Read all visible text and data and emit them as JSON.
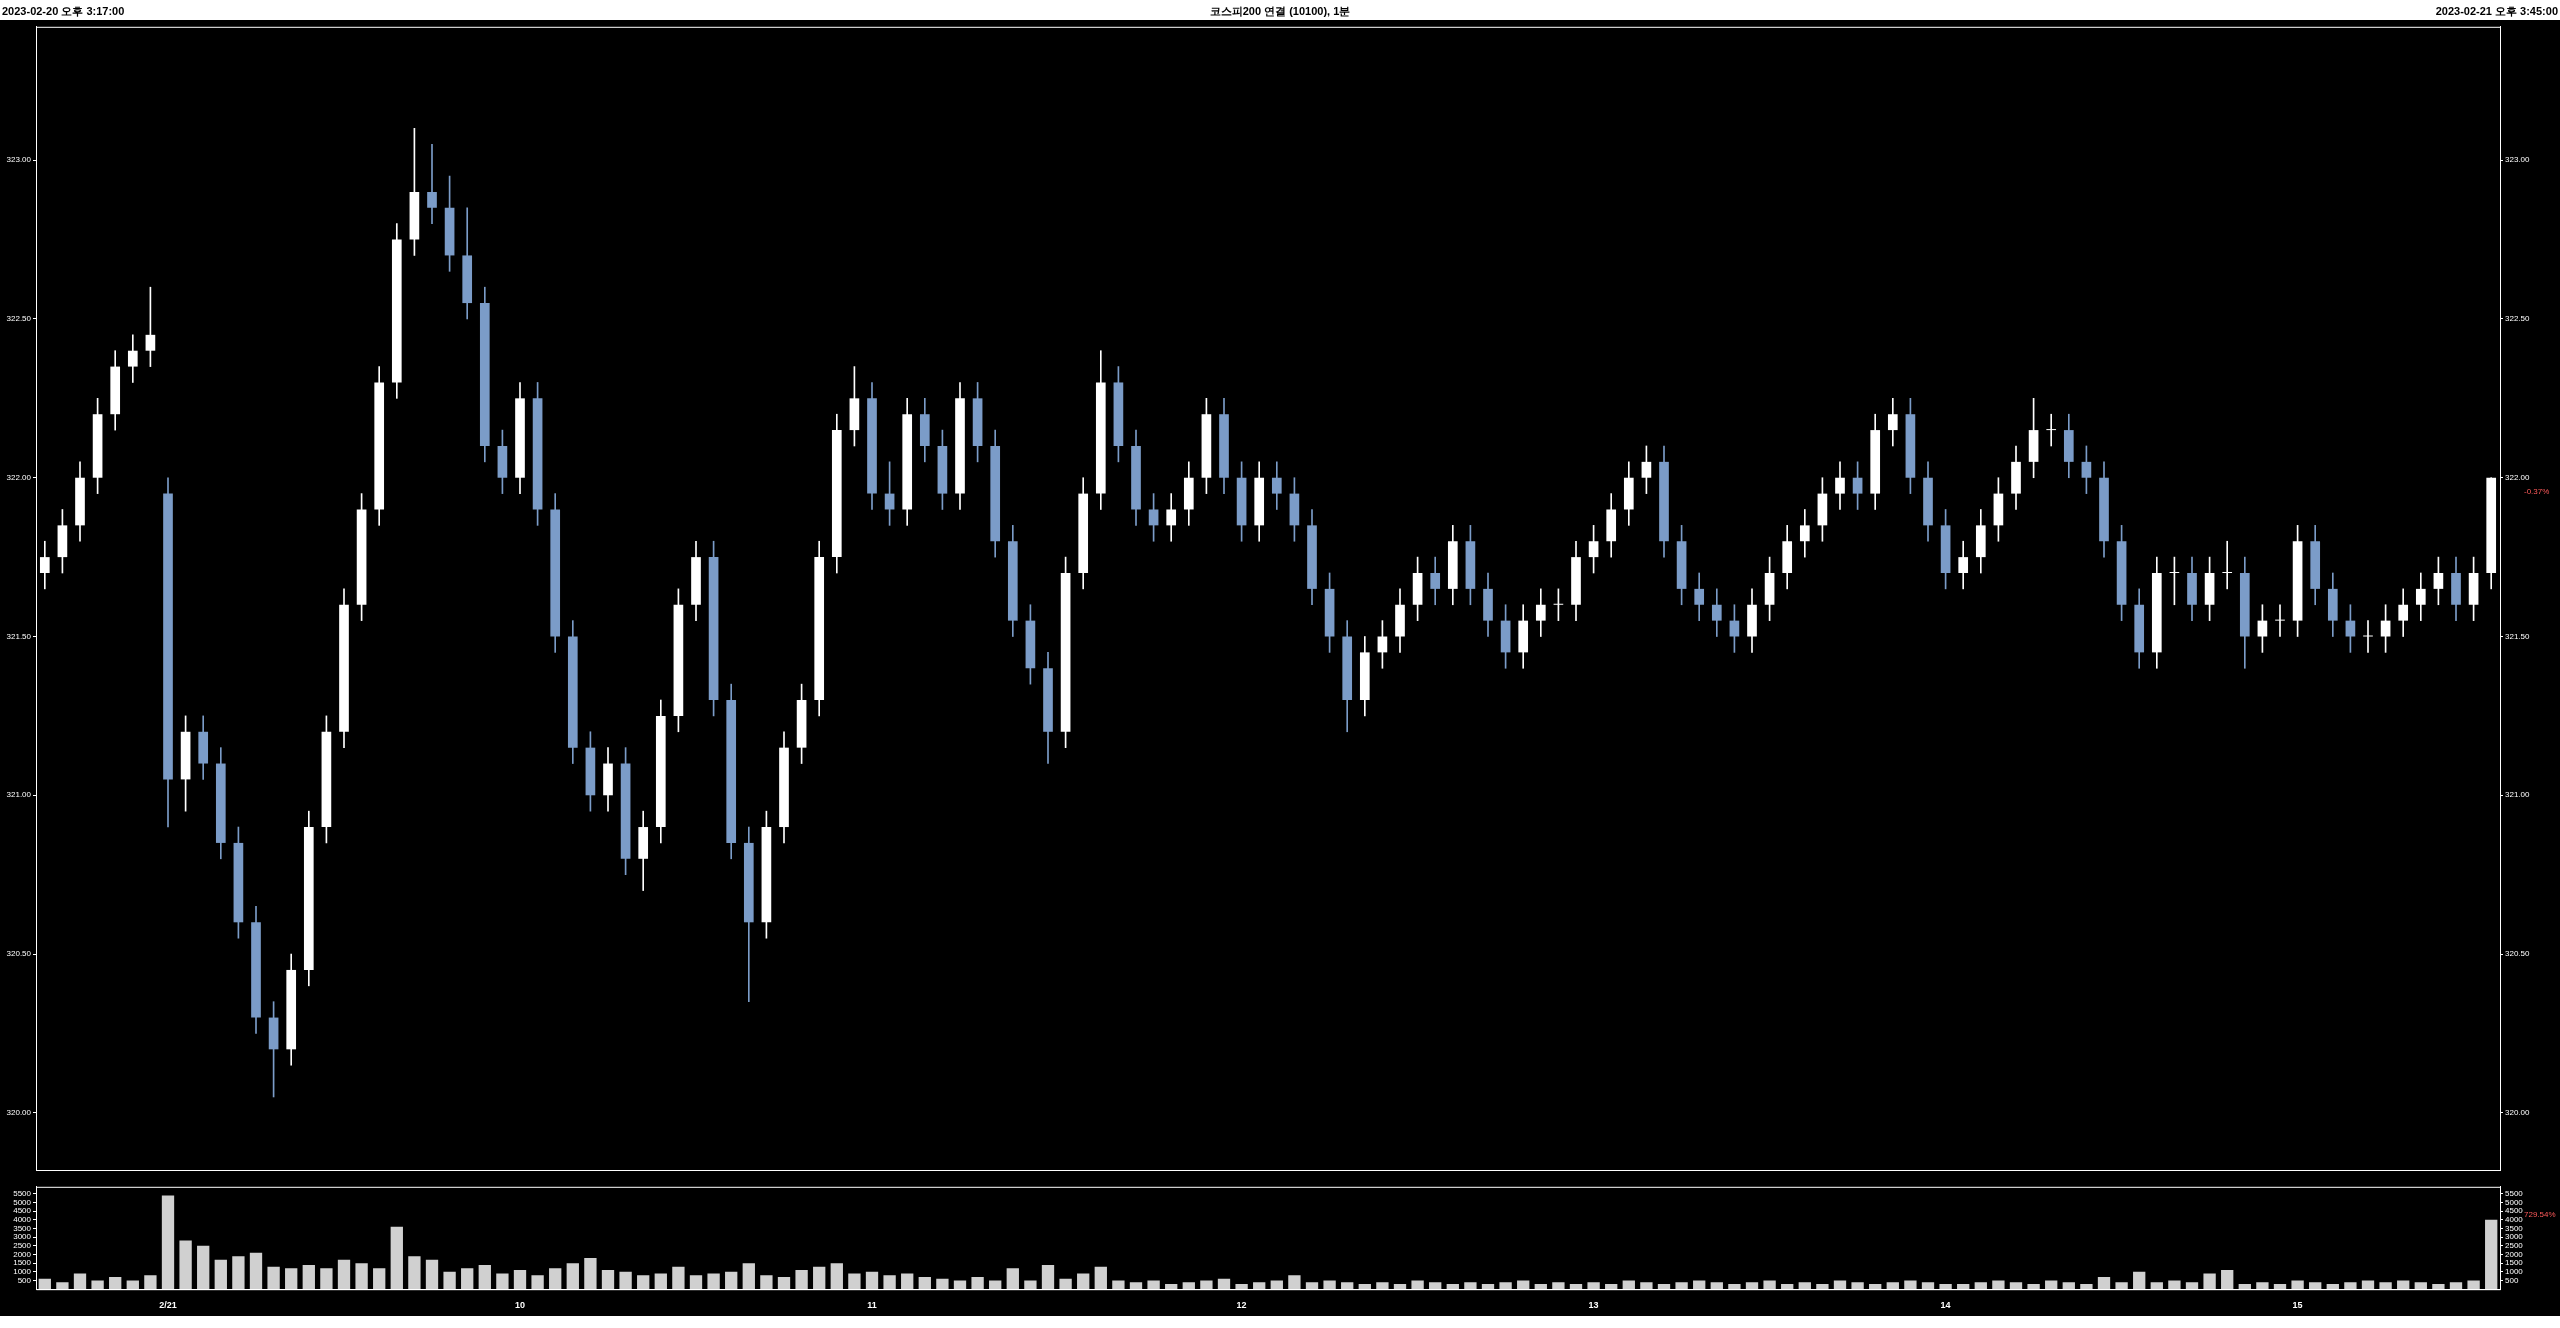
{
  "chart_data": [
    {
      "type": "candlestick",
      "title": "코스피200 연결 (10100), 1분",
      "annotations": [
        "2023-02-20 오후 3:17:00",
        "2023-02-21 오후 3:45:00",
        "-0.37%"
      ],
      "tick_labels": "y",
      "ylim": [
        319.82,
        323.42
      ],
      "y2lim": [
        319.82,
        323.42
      ],
      "y2ticks": [
        {
          "value": 320,
          "label": "320.00"
        },
        {
          "value": 320.5,
          "label": "320.50"
        },
        {
          "value": 321,
          "label": "321.00"
        },
        {
          "value": 321.5,
          "label": "321.50"
        },
        {
          "value": 322,
          "label": "322.00"
        },
        {
          "value": 322.5,
          "label": "322.50"
        },
        {
          "value": 323,
          "label": "323.00"
        }
      ],
      "yticks": [
        {
          "value": 320,
          "label": "320.00"
        },
        {
          "value": 320.5,
          "label": "320.50"
        },
        {
          "value": 321,
          "label": "321.00"
        },
        {
          "value": 321.5,
          "label": "321.50"
        },
        {
          "value": 322,
          "label": "322.00"
        },
        {
          "value": 322.5,
          "label": "322.50"
        },
        {
          "value": 323,
          "label": "323.00"
        }
      ],
      "ohlc": [
        [
          321.7,
          321.8,
          321.65,
          321.75
        ],
        [
          321.75,
          321.9,
          321.7,
          321.85
        ],
        [
          321.85,
          322.05,
          321.8,
          322.0
        ],
        [
          322.0,
          322.25,
          321.95,
          322.2
        ],
        [
          322.2,
          322.4,
          322.15,
          322.35
        ],
        [
          322.35,
          322.45,
          322.3,
          322.4
        ],
        [
          322.4,
          322.6,
          322.35,
          322.45
        ],
        [
          321.95,
          322.0,
          320.9,
          321.05
        ],
        [
          321.05,
          321.25,
          320.95,
          321.2
        ],
        [
          321.2,
          321.25,
          321.05,
          321.1
        ],
        [
          321.1,
          321.15,
          320.8,
          320.85
        ],
        [
          320.85,
          320.9,
          320.55,
          320.6
        ],
        [
          320.6,
          320.65,
          320.25,
          320.3
        ],
        [
          320.3,
          320.35,
          320.05,
          320.2
        ],
        [
          320.2,
          320.5,
          320.15,
          320.45
        ],
        [
          320.45,
          320.95,
          320.4,
          320.9
        ],
        [
          320.9,
          321.25,
          320.85,
          321.2
        ],
        [
          321.2,
          321.65,
          321.15,
          321.6
        ],
        [
          321.6,
          321.95,
          321.55,
          321.9
        ],
        [
          321.9,
          322.35,
          321.85,
          322.3
        ],
        [
          322.3,
          322.8,
          322.25,
          322.75
        ],
        [
          322.75,
          323.1,
          322.7,
          322.9
        ],
        [
          322.9,
          323.05,
          322.8,
          322.85
        ],
        [
          322.85,
          322.95,
          322.65,
          322.7
        ],
        [
          322.7,
          322.85,
          322.5,
          322.55
        ],
        [
          322.55,
          322.6,
          322.05,
          322.1
        ],
        [
          322.1,
          322.15,
          321.95,
          322.0
        ],
        [
          322.0,
          322.3,
          321.95,
          322.25
        ],
        [
          322.25,
          322.3,
          321.85,
          321.9
        ],
        [
          321.9,
          321.95,
          321.45,
          321.5
        ],
        [
          321.5,
          321.55,
          321.1,
          321.15
        ],
        [
          321.15,
          321.2,
          320.95,
          321.0
        ],
        [
          321.0,
          321.15,
          320.95,
          321.1
        ],
        [
          321.1,
          321.15,
          320.75,
          320.8
        ],
        [
          320.8,
          320.95,
          320.7,
          320.9
        ],
        [
          320.9,
          321.3,
          320.85,
          321.25
        ],
        [
          321.25,
          321.65,
          321.2,
          321.6
        ],
        [
          321.6,
          321.8,
          321.55,
          321.75
        ],
        [
          321.75,
          321.8,
          321.25,
          321.3
        ],
        [
          321.3,
          321.35,
          320.8,
          320.85
        ],
        [
          320.85,
          320.9,
          320.35,
          320.6
        ],
        [
          320.6,
          320.95,
          320.55,
          320.9
        ],
        [
          320.9,
          321.2,
          320.85,
          321.15
        ],
        [
          321.15,
          321.35,
          321.1,
          321.3
        ],
        [
          321.3,
          321.8,
          321.25,
          321.75
        ],
        [
          321.75,
          322.2,
          321.7,
          322.15
        ],
        [
          322.15,
          322.35,
          322.1,
          322.25
        ],
        [
          322.25,
          322.3,
          321.9,
          321.95
        ],
        [
          321.95,
          322.05,
          321.85,
          321.9
        ],
        [
          321.9,
          322.25,
          321.85,
          322.2
        ],
        [
          322.2,
          322.25,
          322.05,
          322.1
        ],
        [
          322.1,
          322.15,
          321.9,
          321.95
        ],
        [
          321.95,
          322.3,
          321.9,
          322.25
        ],
        [
          322.25,
          322.3,
          322.05,
          322.1
        ],
        [
          322.1,
          322.15,
          321.75,
          321.8
        ],
        [
          321.8,
          321.85,
          321.5,
          321.55
        ],
        [
          321.55,
          321.6,
          321.35,
          321.4
        ],
        [
          321.4,
          321.45,
          321.1,
          321.2
        ],
        [
          321.2,
          321.75,
          321.15,
          321.7
        ],
        [
          321.7,
          322.0,
          321.65,
          321.95
        ],
        [
          321.95,
          322.4,
          321.9,
          322.3
        ],
        [
          322.3,
          322.35,
          322.05,
          322.1
        ],
        [
          322.1,
          322.15,
          321.85,
          321.9
        ],
        [
          321.9,
          321.95,
          321.8,
          321.85
        ],
        [
          321.85,
          321.95,
          321.8,
          321.9
        ],
        [
          321.9,
          322.05,
          321.85,
          322.0
        ],
        [
          322.0,
          322.25,
          321.95,
          322.2
        ],
        [
          322.2,
          322.25,
          321.95,
          322.0
        ],
        [
          322.0,
          322.05,
          321.8,
          321.85
        ],
        [
          321.85,
          322.05,
          321.8,
          322.0
        ],
        [
          322.0,
          322.05,
          321.9,
          321.95
        ],
        [
          321.95,
          322.0,
          321.8,
          321.85
        ],
        [
          321.85,
          321.9,
          321.6,
          321.65
        ],
        [
          321.65,
          321.7,
          321.45,
          321.5
        ],
        [
          321.5,
          321.55,
          321.2,
          321.3
        ],
        [
          321.3,
          321.5,
          321.25,
          321.45
        ],
        [
          321.45,
          321.55,
          321.4,
          321.5
        ],
        [
          321.5,
          321.65,
          321.45,
          321.6
        ],
        [
          321.6,
          321.75,
          321.55,
          321.7
        ],
        [
          321.7,
          321.75,
          321.6,
          321.65
        ],
        [
          321.65,
          321.85,
          321.6,
          321.8
        ],
        [
          321.8,
          321.85,
          321.6,
          321.65
        ],
        [
          321.65,
          321.7,
          321.5,
          321.55
        ],
        [
          321.55,
          321.6,
          321.4,
          321.45
        ],
        [
          321.45,
          321.6,
          321.4,
          321.55
        ],
        [
          321.55,
          321.65,
          321.5,
          321.6
        ],
        [
          321.6,
          321.65,
          321.55,
          321.6
        ],
        [
          321.6,
          321.8,
          321.55,
          321.75
        ],
        [
          321.75,
          321.85,
          321.7,
          321.8
        ],
        [
          321.8,
          321.95,
          321.75,
          321.9
        ],
        [
          321.9,
          322.05,
          321.85,
          322.0
        ],
        [
          322.0,
          322.1,
          321.95,
          322.05
        ],
        [
          322.05,
          322.1,
          321.75,
          321.8
        ],
        [
          321.8,
          321.85,
          321.6,
          321.65
        ],
        [
          321.65,
          321.7,
          321.55,
          321.6
        ],
        [
          321.6,
          321.65,
          321.5,
          321.55
        ],
        [
          321.55,
          321.6,
          321.45,
          321.5
        ],
        [
          321.5,
          321.65,
          321.45,
          321.6
        ],
        [
          321.6,
          321.75,
          321.55,
          321.7
        ],
        [
          321.7,
          321.85,
          321.65,
          321.8
        ],
        [
          321.8,
          321.9,
          321.75,
          321.85
        ],
        [
          321.85,
          322.0,
          321.8,
          321.95
        ],
        [
          321.95,
          322.05,
          321.9,
          322.0
        ],
        [
          322.0,
          322.05,
          321.9,
          321.95
        ],
        [
          321.95,
          322.2,
          321.9,
          322.15
        ],
        [
          322.15,
          322.25,
          322.1,
          322.2
        ],
        [
          322.2,
          322.25,
          321.95,
          322.0
        ],
        [
          322.0,
          322.05,
          321.8,
          321.85
        ],
        [
          321.85,
          321.9,
          321.65,
          321.7
        ],
        [
          321.7,
          321.8,
          321.65,
          321.75
        ],
        [
          321.75,
          321.9,
          321.7,
          321.85
        ],
        [
          321.85,
          322.0,
          321.8,
          321.95
        ],
        [
          321.95,
          322.1,
          321.9,
          322.05
        ],
        [
          322.05,
          322.25,
          322.0,
          322.15
        ],
        [
          322.15,
          322.2,
          322.1,
          322.15
        ],
        [
          322.15,
          322.2,
          322.0,
          322.05
        ],
        [
          322.05,
          322.1,
          321.95,
          322.0
        ],
        [
          322.0,
          322.05,
          321.75,
          321.8
        ],
        [
          321.8,
          321.85,
          321.55,
          321.6
        ],
        [
          321.6,
          321.65,
          321.4,
          321.45
        ],
        [
          321.45,
          321.75,
          321.4,
          321.7
        ],
        [
          321.7,
          321.75,
          321.6,
          321.7
        ],
        [
          321.7,
          321.75,
          321.55,
          321.6
        ],
        [
          321.6,
          321.75,
          321.55,
          321.7
        ],
        [
          321.7,
          321.8,
          321.65,
          321.7
        ],
        [
          321.7,
          321.75,
          321.4,
          321.5
        ],
        [
          321.5,
          321.6,
          321.45,
          321.55
        ],
        [
          321.55,
          321.6,
          321.5,
          321.55
        ],
        [
          321.55,
          321.85,
          321.5,
          321.8
        ],
        [
          321.8,
          321.85,
          321.6,
          321.65
        ],
        [
          321.65,
          321.7,
          321.5,
          321.55
        ],
        [
          321.55,
          321.6,
          321.45,
          321.5
        ],
        [
          321.5,
          321.55,
          321.45,
          321.5
        ],
        [
          321.5,
          321.6,
          321.45,
          321.55
        ],
        [
          321.55,
          321.65,
          321.5,
          321.6
        ],
        [
          321.6,
          321.7,
          321.55,
          321.65
        ],
        [
          321.65,
          321.75,
          321.6,
          321.7
        ],
        [
          321.7,
          321.75,
          321.55,
          321.6
        ],
        [
          321.6,
          321.75,
          321.55,
          321.7
        ],
        [
          321.7,
          322.0,
          321.65,
          322.0
        ]
      ],
      "colors": [
        "#ffffff",
        "#ffffff",
        "#ffffff",
        "#ffffff",
        "#ffffff",
        "#ffffff",
        "#ffffff",
        "#7b9cc8",
        "#ffffff",
        "#7b9cc8",
        "#7b9cc8",
        "#7b9cc8",
        "#7b9cc8",
        "#7b9cc8",
        "#ffffff",
        "#ffffff",
        "#ffffff",
        "#ffffff",
        "#ffffff",
        "#ffffff",
        "#ffffff",
        "#ffffff",
        "#7b9cc8",
        "#7b9cc8",
        "#7b9cc8",
        "#7b9cc8",
        "#7b9cc8",
        "#ffffff",
        "#7b9cc8",
        "#7b9cc8",
        "#7b9cc8",
        "#7b9cc8",
        "#ffffff",
        "#7b9cc8",
        "#ffffff",
        "#ffffff",
        "#ffffff",
        "#ffffff",
        "#7b9cc8",
        "#7b9cc8",
        "#7b9cc8",
        "#ffffff",
        "#ffffff",
        "#ffffff",
        "#ffffff",
        "#ffffff",
        "#ffffff",
        "#7b9cc8",
        "#7b9cc8",
        "#ffffff",
        "#7b9cc8",
        "#7b9cc8",
        "#ffffff",
        "#7b9cc8",
        "#7b9cc8",
        "#7b9cc8",
        "#7b9cc8",
        "#7b9cc8",
        "#ffffff",
        "#ffffff",
        "#ffffff",
        "#7b9cc8",
        "#7b9cc8",
        "#7b9cc8",
        "#ffffff",
        "#ffffff",
        "#ffffff",
        "#7b9cc8",
        "#7b9cc8",
        "#ffffff",
        "#7b9cc8",
        "#7b9cc8",
        "#7b9cc8",
        "#7b9cc8",
        "#7b9cc8",
        "#ffffff",
        "#ffffff",
        "#ffffff",
        "#ffffff",
        "#7b9cc8",
        "#ffffff",
        "#7b9cc8",
        "#7b9cc8",
        "#7b9cc8",
        "#ffffff",
        "#ffffff",
        "#ffffff",
        "#ffffff",
        "#ffffff",
        "#ffffff",
        "#ffffff",
        "#ffffff",
        "#7b9cc8",
        "#7b9cc8",
        "#7b9cc8",
        "#7b9cc8",
        "#7b9cc8",
        "#ffffff",
        "#ffffff",
        "#ffffff",
        "#ffffff",
        "#ffffff",
        "#ffffff",
        "#7b9cc8",
        "#ffffff",
        "#ffffff",
        "#7b9cc8",
        "#7b9cc8",
        "#7b9cc8",
        "#ffffff",
        "#ffffff",
        "#ffffff",
        "#ffffff",
        "#ffffff",
        "#ffffff",
        "#7b9cc8",
        "#7b9cc8",
        "#7b9cc8",
        "#7b9cc8",
        "#7b9cc8",
        "#ffffff",
        "#ffffff",
        "#7b9cc8",
        "#ffffff",
        "#ffffff",
        "#7b9cc8",
        "#ffffff",
        "#ffffff",
        "#ffffff",
        "#7b9cc8",
        "#7b9cc8",
        "#7b9cc8",
        "#ffffff",
        "#ffffff",
        "#ffffff",
        "#ffffff",
        "#ffffff",
        "#7b9cc8",
        "#ffffff",
        "#ffffff"
      ]
    },
    {
      "type": "bar",
      "annotations": [
        "729.54%"
      ],
      "categories": [
        null,
        null,
        null,
        null,
        null,
        null,
        null,
        "2/21",
        null,
        null,
        null,
        null,
        null,
        null,
        null,
        null,
        null,
        null,
        null,
        null,
        null,
        null,
        null,
        null,
        null,
        null,
        null,
        "10",
        null,
        null,
        null,
        null,
        null,
        null,
        null,
        null,
        null,
        null,
        null,
        null,
        null,
        null,
        null,
        null,
        null,
        null,
        null,
        "11",
        null,
        null,
        null,
        null,
        null,
        null,
        null,
        null,
        null,
        null,
        null,
        null,
        null,
        null,
        null,
        null,
        null,
        null,
        null,
        null,
        "12",
        null,
        null,
        null,
        null,
        null,
        null,
        null,
        null,
        null,
        null,
        null,
        null,
        null,
        null,
        null,
        null,
        null,
        null,
        null,
        "13",
        null,
        null,
        null,
        null,
        null,
        null,
        null,
        null,
        null,
        null,
        null,
        null,
        null,
        null,
        null,
        null,
        null,
        null,
        null,
        "14",
        null,
        null,
        null,
        null,
        null,
        null,
        null,
        null,
        null,
        null,
        null,
        null,
        null,
        null,
        null,
        null,
        null,
        null,
        null,
        "15",
        null,
        null,
        null,
        null,
        null,
        null,
        null,
        null,
        null,
        null,
        null
      ],
      "color": "#d0d0d0",
      "ylim": [
        0,
        5900
      ],
      "yticks": [
        500,
        1000,
        1500,
        2000,
        2500,
        3000,
        3500,
        4000,
        4500,
        5000,
        5500
      ],
      "y2lim": [
        0,
        5900
      ],
      "y2ticks": [
        500,
        1000,
        1500,
        2000,
        2500,
        3000,
        3500,
        4000,
        4500,
        5000,
        5500
      ],
      "values": [
        600,
        400,
        900,
        500,
        700,
        500,
        800,
        5400,
        2800,
        2500,
        1700,
        1900,
        2100,
        1300,
        1200,
        1400,
        1200,
        1700,
        1500,
        1200,
        3600,
        1900,
        1700,
        1000,
        1200,
        1400,
        900,
        1100,
        800,
        1200,
        1500,
        1800,
        1100,
        1000,
        800,
        900,
        1300,
        800,
        900,
        1000,
        1500,
        800,
        700,
        1100,
        1300,
        1500,
        900,
        1000,
        800,
        900,
        700,
        600,
        500,
        700,
        500,
        1200,
        500,
        1400,
        600,
        900,
        1300,
        500,
        400,
        500,
        300,
        400,
        500,
        600,
        300,
        400,
        500,
        800,
        400,
        500,
        400,
        300,
        400,
        300,
        500,
        400,
        300,
        400,
        300,
        400,
        500,
        300,
        400,
        300,
        400,
        300,
        500,
        400,
        300,
        400,
        500,
        400,
        300,
        400,
        500,
        300,
        400,
        300,
        500,
        400,
        300,
        400,
        500,
        400,
        300,
        300,
        400,
        500,
        400,
        300,
        500,
        400,
        300,
        700,
        400,
        1000,
        400,
        500,
        400,
        900,
        1100,
        300,
        400,
        300,
        500,
        400,
        300,
        400,
        500,
        400,
        500,
        400,
        300,
        400,
        500,
        4000
      ]
    }
  ]
}
